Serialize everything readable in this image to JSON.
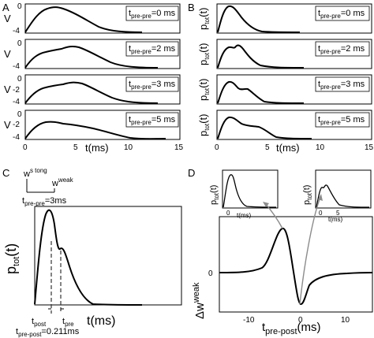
{
  "panels": {
    "A": {
      "letter": "A",
      "ylabel": "V",
      "xlabel": "t(ms)",
      "xticks": [
        "0",
        "5",
        "10",
        "15"
      ],
      "yticks": [
        "0",
        "-2",
        "-4"
      ],
      "legends": [
        {
          "t": "t",
          "sub": "pre-pre",
          "val": "=0 ms"
        },
        {
          "t": "t",
          "sub": "pre-pre",
          "val": "=2 ms"
        },
        {
          "t": "t",
          "sub": "pre-pre",
          "val": "=3 ms"
        },
        {
          "t": "t",
          "sub": "pre-pre",
          "val": "=5 ms"
        }
      ]
    },
    "B": {
      "letter": "B",
      "ylabel": "p",
      "ylabel_sub": "tot",
      "ylabel_tail": "(t)",
      "xlabel": "t(ms)",
      "xticks": [
        "0",
        "5",
        "10",
        "15"
      ],
      "legends": [
        {
          "t": "t",
          "sub": "pre-pre",
          "val": "=0 ms"
        },
        {
          "t": "t",
          "sub": "pre-pre",
          "val": "=2 ms"
        },
        {
          "t": "t",
          "sub": "pre-pre",
          "val": "=3 ms"
        },
        {
          "t": "t",
          "sub": "pre-pre",
          "val": "=5 ms"
        }
      ]
    },
    "C": {
      "letter": "C",
      "w_strong": "w",
      "w_strong_sup": "s tong",
      "w_weak": "w",
      "w_weak_sup": "weak",
      "tprepre": "t",
      "tprepre_sub": "pre-pre",
      "tprepre_val": "=3ms",
      "ylabel": "p",
      "ylabel_sub": "tot",
      "ylabel_tail": "(t)",
      "xlabel": "t(ms)",
      "tpost": "t",
      "tpost_sub": "post",
      "tpre": "t",
      "tpre_sub": "pre",
      "tprepost": "t",
      "tprepost_sub": "pre-post",
      "tprepost_val": "=0.211ms"
    },
    "D": {
      "letter": "D",
      "ylabel": "Δw",
      "ylabel_sup": "weak",
      "yticks": [
        "0"
      ],
      "xticks": [
        "-10",
        "0",
        "10"
      ],
      "xlabel": "t",
      "xlabel_sub": "pre-post",
      "xlabel_tail": "(ms)",
      "inset_ylabel": "p",
      "inset_ylabel_sub": "tot",
      "inset_ylabel_tail": "(t)",
      "inset_xlabel": "t(ms)",
      "inset_xticks": [
        "0",
        "5"
      ]
    }
  },
  "chart_data": [
    {
      "type": "line",
      "panel": "A",
      "xlabel": "t(ms)",
      "ylabel": "V",
      "xlim": [
        0,
        15
      ],
      "ylim": [
        -4,
        0.5
      ],
      "series": [
        {
          "name": "tpre-pre=0 ms",
          "x": [
            0,
            1,
            2,
            3,
            3.5,
            4,
            5,
            6,
            7,
            8,
            9,
            10,
            11,
            12
          ],
          "y": [
            -4,
            -1.6,
            -0.6,
            -0.1,
            0,
            -0.1,
            -0.5,
            -1.2,
            -2.0,
            -2.8,
            -3.4,
            -3.8,
            -4.0,
            -4.0
          ]
        },
        {
          "name": "tpre-pre=2 ms",
          "x": [
            0,
            1,
            2,
            3,
            3.5,
            4.5,
            5,
            6,
            7,
            8,
            9,
            10,
            11,
            12
          ],
          "y": [
            -4,
            -2.3,
            -1.7,
            -1.5,
            -1.0,
            -0.2,
            -0.3,
            -0.8,
            -1.5,
            -2.3,
            -3.0,
            -3.6,
            -3.9,
            -4.0
          ]
        },
        {
          "name": "tpre-pre=3 ms",
          "x": [
            0,
            1,
            2,
            3,
            4,
            5,
            6,
            7,
            8,
            9,
            10,
            11,
            12
          ],
          "y": [
            -4,
            -2.3,
            -1.6,
            -1.5,
            -1.0,
            -0.7,
            -0.9,
            -1.6,
            -2.4,
            -3.1,
            -3.6,
            -3.9,
            -4.0
          ]
        },
        {
          "name": "tpre-pre=5 ms",
          "x": [
            0,
            1,
            2,
            3,
            4,
            5,
            6,
            7,
            8,
            9,
            10,
            11,
            12,
            13
          ],
          "y": [
            -4,
            -2.3,
            -1.6,
            -1.6,
            -2.0,
            -2.2,
            -2.4,
            -2.6,
            -3.0,
            -3.4,
            -3.7,
            -3.9,
            -4.0,
            -4.0
          ]
        }
      ]
    },
    {
      "type": "line",
      "panel": "B",
      "xlabel": "t(ms)",
      "xlim": [
        0,
        15
      ],
      "ylim": [
        0,
        1
      ],
      "series": [
        {
          "name": "tpre-pre=0 ms",
          "x": [
            0,
            0.5,
            1,
            1.5,
            2,
            3,
            4,
            5,
            6,
            7
          ],
          "y": [
            0,
            0.5,
            0.85,
            0.95,
            0.8,
            0.4,
            0.15,
            0.05,
            0.02,
            0
          ]
        },
        {
          "name": "tpre-pre=2 ms",
          "x": [
            0,
            0.5,
            1,
            1.5,
            2,
            2.5,
            3,
            4,
            5,
            6,
            7
          ],
          "y": [
            0,
            0.45,
            0.7,
            0.75,
            0.7,
            0.78,
            0.7,
            0.4,
            0.15,
            0.05,
            0
          ]
        },
        {
          "name": "tpre-pre=3 ms",
          "x": [
            0,
            0.5,
            1,
            1.5,
            2,
            3,
            3.5,
            4,
            5,
            6,
            7
          ],
          "y": [
            0,
            0.45,
            0.75,
            0.8,
            0.7,
            0.55,
            0.58,
            0.5,
            0.25,
            0.08,
            0
          ]
        },
        {
          "name": "tpre-pre=5 ms",
          "x": [
            0,
            0.5,
            1,
            1.5,
            2,
            3,
            4,
            5,
            6,
            7,
            8
          ],
          "y": [
            0,
            0.45,
            0.75,
            0.8,
            0.7,
            0.55,
            0.5,
            0.5,
            0.3,
            0.1,
            0
          ]
        }
      ]
    },
    {
      "type": "line",
      "panel": "C",
      "xlabel": "t(ms)",
      "xlim": [
        0,
        15
      ],
      "ylim": [
        0,
        1
      ],
      "series": [
        {
          "x": [
            0,
            0.5,
            1,
            1.5,
            2,
            2.5,
            3,
            4,
            5,
            6,
            7
          ],
          "y": [
            0,
            0.5,
            0.9,
            1.0,
            0.8,
            0.55,
            0.6,
            0.35,
            0.1,
            0.02,
            0
          ]
        }
      ],
      "markers": {
        "tpost": 2.0,
        "tpre": 2.5
      }
    },
    {
      "type": "line",
      "panel": "D",
      "xlabel": "tpre-post(ms)",
      "ylabel": "Δw weak",
      "xlim": [
        -17,
        17
      ],
      "ylim": [
        -1.1,
        1.1
      ],
      "series": [
        {
          "x": [
            -17,
            -12,
            -8,
            -6,
            -4,
            -3,
            -2,
            -1,
            0,
            1,
            2,
            3,
            4,
            6,
            8,
            12,
            17
          ],
          "y": [
            0,
            0,
            0.02,
            0.15,
            0.55,
            0.72,
            0.7,
            0.35,
            -0.4,
            -0.85,
            -0.7,
            -0.45,
            -0.3,
            -0.15,
            -0.08,
            -0.03,
            0
          ]
        }
      ]
    }
  ]
}
